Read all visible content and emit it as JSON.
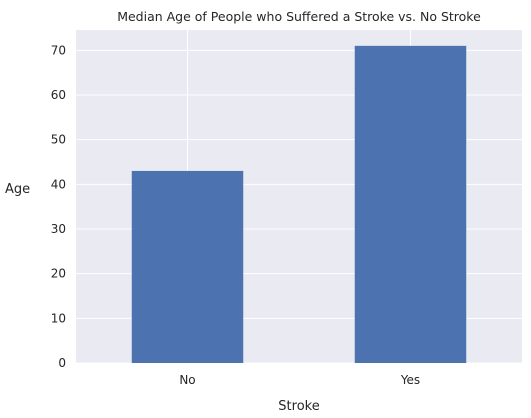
{
  "chart_data": {
    "type": "bar",
    "title": "Median Age of People who Suffered a Stroke vs. No Stroke",
    "xlabel": "Stroke",
    "ylabel": "Age",
    "categories": [
      "No",
      "Yes"
    ],
    "values": [
      43,
      71
    ],
    "yticks": [
      0,
      10,
      20,
      30,
      40,
      50,
      60,
      70
    ],
    "ylim": [
      0,
      74.55
    ],
    "grid": true,
    "colors": {
      "bar": "#4c72b0",
      "plot_bg": "#eaeaf2",
      "grid": "#ffffff"
    }
  }
}
